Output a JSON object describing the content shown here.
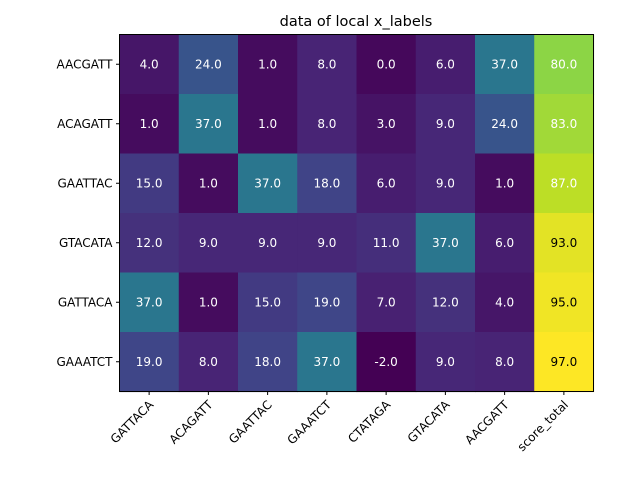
{
  "chart_data": {
    "type": "heatmap",
    "title": "data of local x_labels",
    "x_labels": [
      "GATTACA",
      "ACAGATT",
      "GAATTAC",
      "GAAATCT",
      "CTATAGA",
      "GTACATA",
      "AACGATT",
      "score_total"
    ],
    "y_labels": [
      "AACGATT",
      "ACAGATT",
      "GAATTAC",
      "GTACATA",
      "GATTACA",
      "GAAATCT"
    ],
    "values": [
      [
        4.0,
        24.0,
        1.0,
        8.0,
        0.0,
        6.0,
        37.0,
        80.0
      ],
      [
        1.0,
        37.0,
        1.0,
        8.0,
        3.0,
        9.0,
        24.0,
        83.0
      ],
      [
        15.0,
        1.0,
        37.0,
        18.0,
        6.0,
        9.0,
        1.0,
        87.0
      ],
      [
        12.0,
        9.0,
        9.0,
        9.0,
        11.0,
        37.0,
        6.0,
        93.0
      ],
      [
        37.0,
        1.0,
        15.0,
        19.0,
        7.0,
        12.0,
        4.0,
        95.0
      ],
      [
        19.0,
        8.0,
        18.0,
        37.0,
        -2.0,
        9.0,
        8.0,
        97.0
      ]
    ],
    "value_range": [
      -2.0,
      97.0
    ],
    "colormap": "viridis",
    "cell_text_colors": {
      "dark_bg": "#ffffff",
      "light_bg": "#000000"
    },
    "grid": false,
    "legend": "none"
  }
}
